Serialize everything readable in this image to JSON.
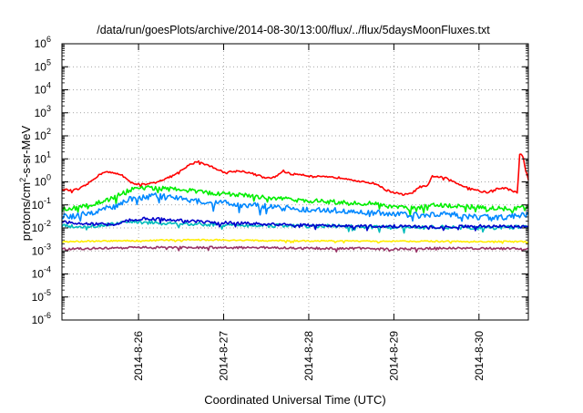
{
  "chart_data": {
    "type": "line",
    "title": "/data/run/goesPlots/archive/2014-08-30/13:00/flux/../flux/5daysMoonFluxes.txt",
    "xlabel": "Coordinated Universal Time (UTC)",
    "ylabel": {
      "parts": [
        {
          "text": "protons/cm",
          "sup": false
        },
        {
          "text": "2",
          "sup": true
        },
        {
          "text": "-s-sr-MeV",
          "sup": false
        }
      ]
    },
    "yscale": "log",
    "ylim_exp": [
      -6,
      6
    ],
    "y_ticks": [
      {
        "base": "10",
        "exp": "-6"
      },
      {
        "base": "10",
        "exp": "-5"
      },
      {
        "base": "10",
        "exp": "-4"
      },
      {
        "base": "10",
        "exp": "-3"
      },
      {
        "base": "10",
        "exp": "-2"
      },
      {
        "base": "10",
        "exp": "-1"
      },
      {
        "base": "10",
        "exp": "0"
      },
      {
        "base": "10",
        "exp": "1"
      },
      {
        "base": "10",
        "exp": "2"
      },
      {
        "base": "10",
        "exp": "3"
      },
      {
        "base": "10",
        "exp": "4"
      },
      {
        "base": "10",
        "exp": "5"
      },
      {
        "base": "10",
        "exp": "6"
      }
    ],
    "xlim": [
      25.1,
      30.58
    ],
    "x_ticks": [
      {
        "day": 26,
        "label": "2014-8-26"
      },
      {
        "day": 27,
        "label": "2014-8-27"
      },
      {
        "day": 28,
        "label": "2014-8-28"
      },
      {
        "day": 29,
        "label": "2014-8-29"
      },
      {
        "day": 30,
        "label": "2014-8-30"
      }
    ],
    "grid": "dotted",
    "legend": "none",
    "series": [
      {
        "color": "#ff0000",
        "noise": 0.04,
        "points": [
          [
            25.1,
            0.5
          ],
          [
            25.2,
            0.42
          ],
          [
            25.3,
            0.48
          ],
          [
            25.4,
            0.8
          ],
          [
            25.5,
            1.6
          ],
          [
            25.6,
            2.8
          ],
          [
            25.7,
            2.4
          ],
          [
            25.8,
            2.1
          ],
          [
            25.9,
            0.95
          ],
          [
            26.0,
            0.8
          ],
          [
            26.1,
            0.75
          ],
          [
            26.2,
            1.0
          ],
          [
            26.3,
            1.3
          ],
          [
            26.4,
            1.8
          ],
          [
            26.5,
            3.0
          ],
          [
            26.6,
            5.5
          ],
          [
            26.7,
            8.0
          ],
          [
            26.8,
            5.5
          ],
          [
            26.9,
            4.0
          ],
          [
            27.0,
            2.6
          ],
          [
            27.1,
            2.8
          ],
          [
            27.2,
            3.0
          ],
          [
            27.3,
            2.5
          ],
          [
            27.4,
            2.0
          ],
          [
            27.5,
            1.4
          ],
          [
            27.6,
            1.6
          ],
          [
            27.7,
            3.0
          ],
          [
            27.8,
            2.1
          ],
          [
            27.9,
            2.2
          ],
          [
            28.0,
            1.8
          ],
          [
            28.2,
            1.6
          ],
          [
            28.4,
            1.5
          ],
          [
            28.5,
            1.3
          ],
          [
            28.6,
            1.0
          ],
          [
            28.7,
            0.95
          ],
          [
            28.8,
            0.8
          ],
          [
            28.9,
            0.45
          ],
          [
            29.0,
            0.35
          ],
          [
            29.1,
            0.28
          ],
          [
            29.2,
            0.3
          ],
          [
            29.3,
            0.6
          ],
          [
            29.4,
            0.65
          ],
          [
            29.45,
            1.8
          ],
          [
            29.5,
            1.7
          ],
          [
            29.6,
            1.5
          ],
          [
            29.7,
            1.0
          ],
          [
            29.8,
            0.7
          ],
          [
            29.9,
            0.55
          ],
          [
            30.0,
            0.4
          ],
          [
            30.1,
            0.35
          ],
          [
            30.2,
            0.5
          ],
          [
            30.3,
            0.55
          ],
          [
            30.4,
            0.4
          ],
          [
            30.45,
            0.35
          ],
          [
            30.48,
            17.0
          ],
          [
            30.52,
            12.0
          ],
          [
            30.55,
            3.0
          ],
          [
            30.58,
            1.5
          ]
        ]
      },
      {
        "color": "#00ee00",
        "noise": 0.1,
        "points": [
          [
            25.1,
            0.06
          ],
          [
            25.4,
            0.09
          ],
          [
            25.7,
            0.2
          ],
          [
            25.9,
            0.45
          ],
          [
            26.1,
            0.55
          ],
          [
            26.4,
            0.48
          ],
          [
            26.7,
            0.38
          ],
          [
            27.0,
            0.3
          ],
          [
            27.3,
            0.26
          ],
          [
            27.6,
            0.2
          ],
          [
            27.9,
            0.16
          ],
          [
            28.2,
            0.14
          ],
          [
            28.5,
            0.12
          ],
          [
            28.8,
            0.11
          ],
          [
            29.0,
            0.08
          ],
          [
            29.2,
            0.07
          ],
          [
            29.5,
            0.1
          ],
          [
            29.8,
            0.09
          ],
          [
            30.1,
            0.07
          ],
          [
            30.4,
            0.07
          ],
          [
            30.58,
            0.09
          ]
        ]
      },
      {
        "color": "#0088ff",
        "noise": 0.13,
        "points": [
          [
            25.1,
            0.03
          ],
          [
            25.4,
            0.04
          ],
          [
            25.7,
            0.08
          ],
          [
            25.9,
            0.18
          ],
          [
            26.2,
            0.25
          ],
          [
            26.5,
            0.18
          ],
          [
            26.8,
            0.14
          ],
          [
            27.1,
            0.11
          ],
          [
            27.4,
            0.09
          ],
          [
            27.8,
            0.07
          ],
          [
            28.2,
            0.06
          ],
          [
            28.6,
            0.05
          ],
          [
            29.0,
            0.04
          ],
          [
            29.3,
            0.035
          ],
          [
            29.6,
            0.04
          ],
          [
            30.0,
            0.03
          ],
          [
            30.3,
            0.03
          ],
          [
            30.58,
            0.04
          ]
        ]
      },
      {
        "color": "#00bbbb",
        "noise": 0.08,
        "points": [
          [
            25.1,
            0.012
          ],
          [
            25.5,
            0.012
          ],
          [
            25.9,
            0.018
          ],
          [
            26.3,
            0.016
          ],
          [
            26.8,
            0.014
          ],
          [
            27.3,
            0.013
          ],
          [
            27.8,
            0.012
          ],
          [
            28.3,
            0.012
          ],
          [
            28.8,
            0.011
          ],
          [
            29.2,
            0.01
          ],
          [
            29.6,
            0.011
          ],
          [
            30.0,
            0.01
          ],
          [
            30.58,
            0.011
          ]
        ]
      },
      {
        "color": "#0000cc",
        "noise": 0.06,
        "points": [
          [
            25.1,
            0.018
          ],
          [
            25.4,
            0.015
          ],
          [
            25.7,
            0.014
          ],
          [
            25.9,
            0.022
          ],
          [
            26.1,
            0.026
          ],
          [
            26.4,
            0.022
          ],
          [
            26.8,
            0.018
          ],
          [
            27.2,
            0.016
          ],
          [
            27.6,
            0.014
          ],
          [
            28.0,
            0.013
          ],
          [
            28.5,
            0.012
          ],
          [
            29.0,
            0.012
          ],
          [
            29.5,
            0.011
          ],
          [
            30.0,
            0.012
          ],
          [
            30.58,
            0.011
          ]
        ]
      },
      {
        "color": "#ffee00",
        "noise": 0.03,
        "points": [
          [
            25.1,
            0.0025
          ],
          [
            25.5,
            0.0027
          ],
          [
            26.0,
            0.0028
          ],
          [
            26.5,
            0.003
          ],
          [
            27.0,
            0.003
          ],
          [
            27.5,
            0.0028
          ],
          [
            28.0,
            0.0027
          ],
          [
            28.5,
            0.0027
          ],
          [
            29.0,
            0.0026
          ],
          [
            29.5,
            0.0026
          ],
          [
            30.0,
            0.0026
          ],
          [
            30.58,
            0.0025
          ]
        ]
      },
      {
        "color": "#993366",
        "noise": 0.05,
        "points": [
          [
            25.1,
            0.0012
          ],
          [
            25.5,
            0.0013
          ],
          [
            26.0,
            0.0014
          ],
          [
            26.5,
            0.0014
          ],
          [
            27.0,
            0.0014
          ],
          [
            27.5,
            0.0014
          ],
          [
            28.0,
            0.0013
          ],
          [
            28.5,
            0.0013
          ],
          [
            29.0,
            0.0012
          ],
          [
            29.5,
            0.0013
          ],
          [
            30.0,
            0.0013
          ],
          [
            30.58,
            0.0012
          ]
        ]
      }
    ]
  }
}
